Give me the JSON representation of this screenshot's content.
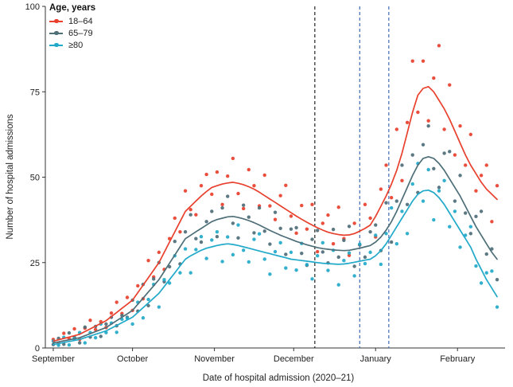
{
  "chart_data": {
    "type": "scatter",
    "title": "",
    "xlabel": "Date of hospital admission (2020–21)",
    "ylabel": "Number of hospital admissions",
    "ylim": [
      0,
      100
    ],
    "yticks": [
      0,
      25,
      50,
      75,
      100
    ],
    "x_unit": "days since 1 September 2020",
    "x_day_step": 2,
    "xlim_days": [
      -3,
      171
    ],
    "grid": false,
    "month_ticks": [
      {
        "day": 0,
        "label": "September"
      },
      {
        "day": 30,
        "label": "October"
      },
      {
        "day": 61,
        "label": "November"
      },
      {
        "day": 91,
        "label": "December"
      },
      {
        "day": 122,
        "label": "January"
      },
      {
        "day": 153,
        "label": "February"
      }
    ],
    "legend": {
      "title": "Age, years",
      "position": "top-left"
    },
    "vlines": [
      {
        "day": 99,
        "color": "#222222",
        "style": "dashed"
      },
      {
        "day": 116,
        "color": "#3f6ab5",
        "style": "dashed"
      },
      {
        "day": 127,
        "color": "#3f6ab5",
        "style": "dashed"
      }
    ],
    "series": [
      {
        "name": "18–64",
        "color": "#e8402d",
        "trend": [
          2,
          2.4,
          2.8,
          3.2,
          3.6,
          4,
          4.8,
          5.6,
          6.4,
          7.2,
          8,
          9.2,
          10.4,
          11.6,
          12.8,
          14,
          16.2,
          18.4,
          20.6,
          22.8,
          25,
          28,
          31,
          34,
          37,
          40,
          41.5,
          43,
          44.5,
          45.8,
          47,
          47.5,
          48,
          48.3,
          48.5,
          48.2,
          47.8,
          47.2,
          46.5,
          45.6,
          44.6,
          43.6,
          42.6,
          41.6,
          40.6,
          39.6,
          38.6,
          37.7,
          36.8,
          36,
          35.2,
          34.5,
          33.9,
          33.5,
          33.2,
          33,
          33.1,
          33.5,
          34.2,
          35,
          36,
          38.5,
          41.5,
          44.5,
          48,
          52,
          57,
          63,
          69,
          74,
          76,
          76.5,
          75,
          72.5,
          70,
          67,
          63.5,
          60,
          56.5,
          53.5,
          51,
          48.5,
          46.5,
          45,
          43.5
        ],
        "jitter": [
          0.5,
          -1,
          1.5,
          -0.5,
          2,
          -1.5,
          1,
          2.5,
          -1,
          0.5,
          -2,
          1,
          3,
          -1.5,
          2,
          -3,
          2,
          -4,
          5,
          -2,
          3,
          -5,
          1,
          4,
          -3,
          6,
          -1,
          -4,
          3,
          5,
          -2,
          4,
          -6,
          2,
          7,
          -3,
          -7,
          5,
          1,
          -4,
          6,
          -2,
          -5,
          3,
          7,
          -1,
          -5,
          4,
          -2,
          6,
          -7,
          2,
          5,
          -3,
          8,
          -1,
          -6,
          3,
          -4,
          7,
          2,
          -6,
          5,
          9,
          -4,
          12,
          -8,
          3,
          15,
          -5,
          8,
          -10,
          4,
          16,
          -6,
          10,
          -7,
          5,
          -3,
          9,
          -5,
          2,
          7,
          -8,
          4
        ]
      },
      {
        "name": "65–79",
        "color": "#4e6e78",
        "trend": [
          1.5,
          1.8,
          2.1,
          2.4,
          2.7,
          3,
          3.6,
          4.2,
          4.8,
          5.4,
          6,
          7,
          8,
          9,
          10,
          11,
          12.8,
          14.6,
          16.4,
          18.2,
          20,
          22.4,
          24.8,
          27.2,
          29.6,
          32,
          33,
          34,
          35,
          36,
          37,
          37.6,
          38,
          38.4,
          38.5,
          38.2,
          37.8,
          37.3,
          36.7,
          36,
          35.2,
          34.4,
          33.7,
          33,
          32.4,
          31.8,
          31.2,
          30.7,
          30.2,
          29.8,
          29.4,
          29.1,
          28.9,
          28.7,
          28.6,
          28.5,
          28.6,
          28.9,
          29.2,
          29.6,
          30,
          31,
          32.5,
          34.5,
          37,
          40,
          43.5,
          47,
          50.5,
          53.5,
          55.5,
          56,
          55.5,
          54,
          52,
          49.5,
          47,
          44.5,
          41.5,
          38.5,
          35.5,
          33,
          30.5,
          28,
          26
        ],
        "jitter": [
          -0.5,
          1,
          -1,
          2,
          0.5,
          -1.5,
          2.5,
          -1,
          1.5,
          -2,
          1,
          2,
          -1.5,
          0.5,
          -1,
          3,
          -2,
          4,
          -4,
          2,
          5,
          -3,
          -1,
          4,
          -5,
          2,
          6,
          -2,
          -4,
          1,
          3,
          -5,
          3,
          6,
          -2,
          -6,
          4,
          1,
          -3,
          5,
          -1,
          -4,
          6,
          2,
          -5,
          3,
          4,
          -3,
          -6,
          2,
          5,
          -1,
          -4,
          6,
          -2,
          3,
          7,
          -5,
          1,
          -3,
          4,
          5,
          -4,
          8,
          -6,
          3,
          10,
          -5,
          6,
          -8,
          4,
          9,
          -3,
          -7,
          5,
          8,
          -4,
          6,
          -2,
          -5,
          3,
          7,
          -3,
          1,
          -6
        ]
      },
      {
        "name": "≥80",
        "color": "#21a9c9",
        "trend": [
          1,
          1.3,
          1.6,
          1.9,
          2.2,
          2.5,
          3,
          3.5,
          4,
          4.5,
          5,
          5.8,
          6.6,
          7.4,
          8.2,
          9,
          10.4,
          11.8,
          13.2,
          14.6,
          16,
          18,
          20,
          22,
          24,
          26,
          27,
          27.8,
          28.6,
          29.2,
          29.6,
          30,
          30.3,
          30.5,
          30.3,
          30,
          29.6,
          29.2,
          28.8,
          28.4,
          28,
          27.6,
          27.2,
          26.8,
          26.4,
          26,
          25.8,
          25.6,
          25.4,
          25.2,
          25,
          24.8,
          24.7,
          24.6,
          24.5,
          24.6,
          24.8,
          25.1,
          25.4,
          25.7,
          26,
          27,
          28.5,
          30.5,
          33,
          35.5,
          38,
          40.5,
          43,
          45,
          46,
          46.2,
          45.5,
          44,
          42,
          39.5,
          37,
          34.5,
          32,
          29.5,
          26,
          23,
          20,
          17.5,
          15
        ],
        "jitter": [
          1,
          -0.5,
          1.5,
          -1,
          0.5,
          2,
          -1.5,
          1,
          -1,
          2.5,
          -0.5,
          1.5,
          -2,
          1,
          0.5,
          -2,
          3,
          -3,
          1,
          4,
          -4,
          2,
          -1,
          5,
          -2,
          3,
          -5,
          1,
          4,
          -3,
          2,
          4,
          -5,
          2,
          -3,
          6,
          -1,
          -4,
          3,
          5,
          -2,
          -6,
          1,
          4,
          -3,
          2,
          -3,
          5,
          -1,
          -5,
          2,
          6,
          -2,
          4,
          -6,
          1,
          3,
          -4,
          5,
          -1,
          2,
          6,
          -4,
          3,
          8,
          -5,
          2,
          -7,
          5,
          9,
          -3,
          6,
          -8,
          2,
          7,
          -4,
          3,
          -5,
          1,
          6,
          -2,
          -4,
          2,
          5,
          -3
        ]
      }
    ]
  }
}
